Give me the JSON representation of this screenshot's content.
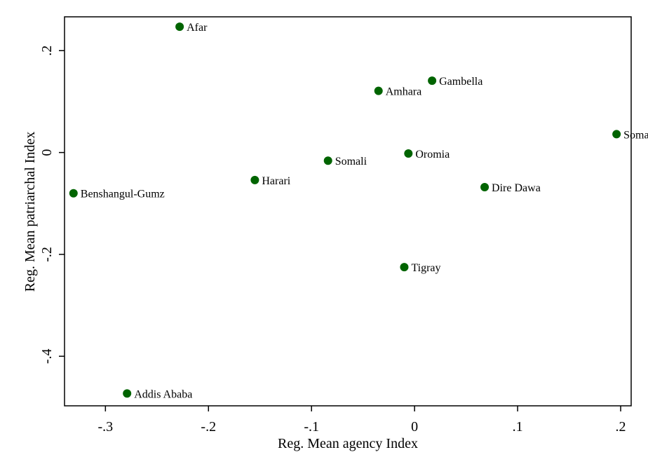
{
  "chart_data": {
    "type": "scatter",
    "xlabel": "Reg. Mean agency Index",
    "ylabel": "Reg. Mean patriarchal Index",
    "xlim": [
      -0.3397,
      0.2102
    ],
    "ylim": [
      -0.4973,
      0.2664
    ],
    "x_ticks": [
      {
        "value": -0.3,
        "label": "-.3"
      },
      {
        "value": -0.2,
        "label": "-.2"
      },
      {
        "value": -0.1,
        "label": "-.1"
      },
      {
        "value": 0,
        "label": "0"
      },
      {
        "value": 0.1,
        "label": ".1"
      },
      {
        "value": 0.2,
        "label": ".2"
      }
    ],
    "y_ticks": [
      {
        "value": 0.2,
        "label": ".2"
      },
      {
        "value": 0,
        "label": "0"
      },
      {
        "value": -0.2,
        "label": "-.2"
      },
      {
        "value": -0.4,
        "label": "-.4"
      }
    ],
    "grid": false,
    "marker_color": "#006400",
    "points": [
      {
        "label": "Afar",
        "x": -0.228,
        "y": 0.247
      },
      {
        "label": "Gambella",
        "x": 0.017,
        "y": 0.141
      },
      {
        "label": "Amhara",
        "x": -0.035,
        "y": 0.121
      },
      {
        "label": "Somali",
        "x": 0.196,
        "y": 0.036
      },
      {
        "label": "Oromia",
        "x": -0.006,
        "y": -0.002
      },
      {
        "label": "Somali",
        "x": -0.084,
        "y": -0.016
      },
      {
        "label": "Harari",
        "x": -0.155,
        "y": -0.054
      },
      {
        "label": "Dire Dawa",
        "x": 0.068,
        "y": -0.068
      },
      {
        "label": "Benshangul-Gumz",
        "x": -0.331,
        "y": -0.08
      },
      {
        "label": "Tigray",
        "x": -0.01,
        "y": -0.225
      },
      {
        "label": "Addis Ababa",
        "x": -0.279,
        "y": -0.473
      }
    ]
  }
}
